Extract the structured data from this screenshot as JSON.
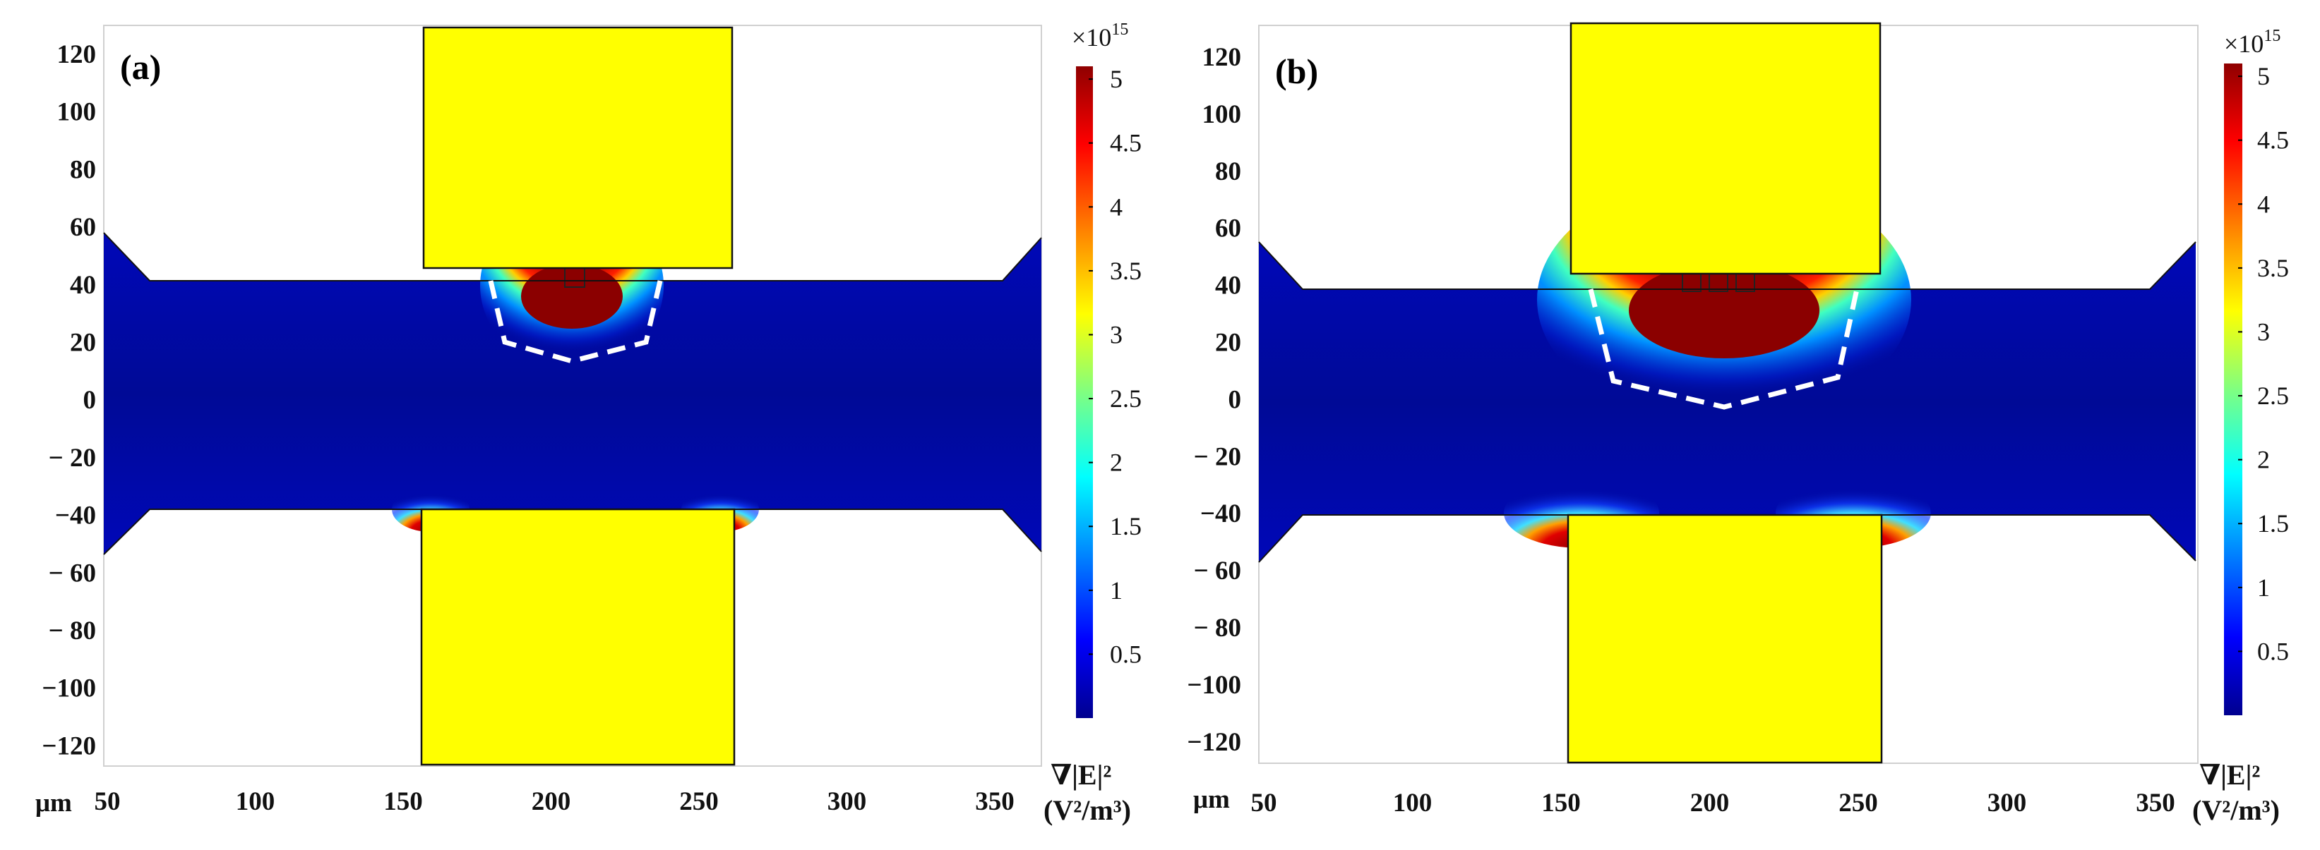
{
  "figure": {
    "colorbar": {
      "multiplier_base": "×10",
      "multiplier_exp": "15",
      "ticks": [
        "5",
        "4.5",
        "4",
        "3.5",
        "3",
        "2.5",
        "2",
        "1.5",
        "1",
        "0.5"
      ],
      "tick_values": [
        5,
        4.5,
        4,
        3.5,
        3,
        2.5,
        2,
        1.5,
        1,
        0.5
      ],
      "range": [
        0,
        5.1
      ],
      "colors": [
        "#00008f",
        "#0000ff",
        "#00ffff",
        "#80ff80",
        "#ffff00",
        "#ff8000",
        "#ff0000",
        "#8f0000"
      ],
      "quantity_symbol": "∇|E|²",
      "units": "(V²/m³)"
    },
    "x_unit": "μm",
    "x_ticks": [
      "50",
      "100",
      "150",
      "200",
      "250",
      "300",
      "350"
    ],
    "y_ticks": [
      "120",
      "100",
      "80",
      "60",
      "40",
      "20",
      "0",
      "− 20",
      "−40",
      "− 60",
      "− 80",
      "−100",
      "−120"
    ],
    "colors": {
      "electrode": "#ffff00",
      "field_background": "#00009a",
      "high_field": "#8b0000",
      "dashed_boundary": "#ffffff"
    },
    "panels": [
      {
        "label": "(a)",
        "electrode_fingers": 1,
        "dashed_region": "trapping zone (single finger)"
      },
      {
        "label": "(b)",
        "electrode_fingers": 3,
        "dashed_region": "trapping zone (three fingers)"
      }
    ]
  }
}
